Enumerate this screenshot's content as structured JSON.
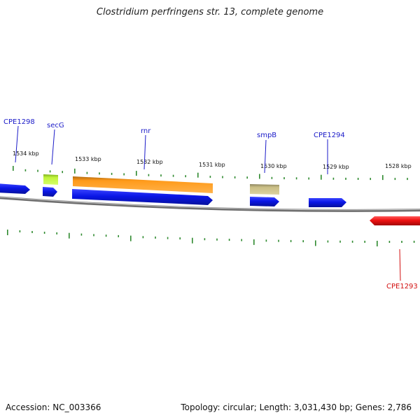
{
  "title": "Clostridium perfringens str. 13, complete genome",
  "footer": {
    "accession": "Accession: NC_003366",
    "summary": "Topology: circular; Length: 3,031,430 bp; Genes: 2,786"
  },
  "colors": {
    "tick": "#2f8a2f",
    "backbone": "#777777",
    "gene_blue": "#0a16e6",
    "gene_red": "#ee1111",
    "orange": "#ff9a1a",
    "lime": "#bff33a",
    "khaki": "#c9be85",
    "label_blue": "#1a1ac8",
    "label_red": "#d21010"
  },
  "scale_labels": [
    "1534 kbp",
    "1533 kbp",
    "1532 kbp",
    "1531 kbp",
    "1530 kbp",
    "1529 kbp",
    "1528 kbp"
  ],
  "gene_labels": [
    {
      "text": "CPE1298",
      "strand": "forward"
    },
    {
      "text": "secG",
      "strand": "forward"
    },
    {
      "text": "rnr",
      "strand": "forward"
    },
    {
      "text": "smpB",
      "strand": "forward"
    },
    {
      "text": "CPE1294",
      "strand": "forward"
    },
    {
      "text": "CPE1293",
      "strand": "reverse"
    }
  ]
}
